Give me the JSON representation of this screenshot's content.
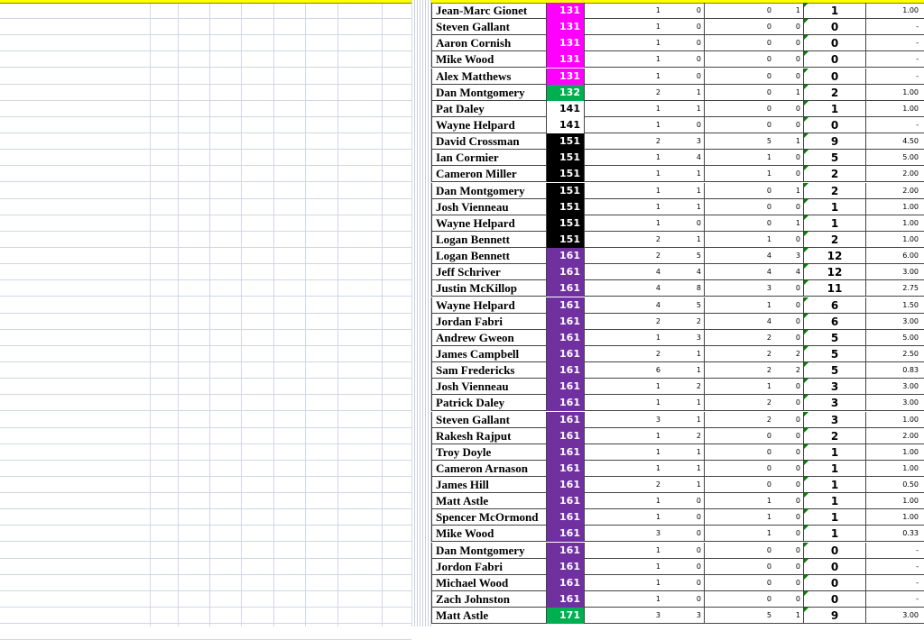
{
  "colors": {
    "header": "#ffff00",
    "c131": "#ff00ff",
    "c132": "#00b050",
    "c141": "#ffffff",
    "c151": "#000000",
    "c161": "#7030a0",
    "c171": "#00b050"
  },
  "rows": [
    {
      "name": "Jean-Marc Gionet",
      "code": "131",
      "a": "1",
      "b": "0",
      "c": "0",
      "d": "1",
      "total": "1",
      "ratio": "1.00"
    },
    {
      "name": "Steven Gallant",
      "code": "131",
      "a": "1",
      "b": "0",
      "c": "0",
      "d": "0",
      "total": "0",
      "ratio": "-"
    },
    {
      "name": "Aaron Cornish",
      "code": "131",
      "a": "1",
      "b": "0",
      "c": "0",
      "d": "0",
      "total": "0",
      "ratio": "-"
    },
    {
      "name": "Mike Wood",
      "code": "131",
      "a": "1",
      "b": "0",
      "c": "0",
      "d": "0",
      "total": "0",
      "ratio": "-"
    },
    {
      "name": "Alex Matthews",
      "code": "131",
      "a": "1",
      "b": "0",
      "c": "0",
      "d": "0",
      "total": "0",
      "ratio": "-"
    },
    {
      "name": "Dan Montgomery",
      "code": "132",
      "a": "2",
      "b": "1",
      "c": "0",
      "d": "1",
      "total": "2",
      "ratio": "1.00"
    },
    {
      "name": "Pat Daley",
      "code": "141",
      "a": "1",
      "b": "1",
      "c": "0",
      "d": "0",
      "total": "1",
      "ratio": "1.00"
    },
    {
      "name": "Wayne Helpard",
      "code": "141",
      "a": "1",
      "b": "0",
      "c": "0",
      "d": "0",
      "total": "0",
      "ratio": "-"
    },
    {
      "name": "David Crossman",
      "code": "151",
      "a": "2",
      "b": "3",
      "c": "5",
      "d": "1",
      "total": "9",
      "ratio": "4.50"
    },
    {
      "name": "Ian Cormier",
      "code": "151",
      "a": "1",
      "b": "4",
      "c": "1",
      "d": "0",
      "total": "5",
      "ratio": "5.00"
    },
    {
      "name": "Cameron Miller",
      "code": "151",
      "a": "1",
      "b": "1",
      "c": "1",
      "d": "0",
      "total": "2",
      "ratio": "2.00"
    },
    {
      "name": "Dan Montgomery",
      "code": "151",
      "a": "1",
      "b": "1",
      "c": "0",
      "d": "1",
      "total": "2",
      "ratio": "2.00"
    },
    {
      "name": "Josh Vienneau",
      "code": "151",
      "a": "1",
      "b": "1",
      "c": "0",
      "d": "0",
      "total": "1",
      "ratio": "1.00"
    },
    {
      "name": "Wayne Helpard",
      "code": "151",
      "a": "1",
      "b": "0",
      "c": "0",
      "d": "1",
      "total": "1",
      "ratio": "1.00"
    },
    {
      "name": "Logan Bennett",
      "code": "151",
      "a": "2",
      "b": "1",
      "c": "1",
      "d": "0",
      "total": "2",
      "ratio": "1.00"
    },
    {
      "name": "Logan Bennett",
      "code": "161",
      "a": "2",
      "b": "5",
      "c": "4",
      "d": "3",
      "total": "12",
      "ratio": "6.00"
    },
    {
      "name": "Jeff Schriver",
      "code": "161",
      "a": "4",
      "b": "4",
      "c": "4",
      "d": "4",
      "total": "12",
      "ratio": "3.00"
    },
    {
      "name": "Justin McKillop",
      "code": "161",
      "a": "4",
      "b": "8",
      "c": "3",
      "d": "0",
      "total": "11",
      "ratio": "2.75"
    },
    {
      "name": "Wayne Helpard",
      "code": "161",
      "a": "4",
      "b": "5",
      "c": "1",
      "d": "0",
      "total": "6",
      "ratio": "1.50"
    },
    {
      "name": "Jordan Fabri",
      "code": "161",
      "a": "2",
      "b": "2",
      "c": "4",
      "d": "0",
      "total": "6",
      "ratio": "3.00"
    },
    {
      "name": "Andrew Gweon",
      "code": "161",
      "a": "1",
      "b": "3",
      "c": "2",
      "d": "0",
      "total": "5",
      "ratio": "5.00"
    },
    {
      "name": "James Campbell",
      "code": "161",
      "a": "2",
      "b": "1",
      "c": "2",
      "d": "2",
      "total": "5",
      "ratio": "2.50"
    },
    {
      "name": "Sam Fredericks",
      "code": "161",
      "a": "6",
      "b": "1",
      "c": "2",
      "d": "2",
      "total": "5",
      "ratio": "0.83"
    },
    {
      "name": "Josh Vienneau",
      "code": "161",
      "a": "1",
      "b": "2",
      "c": "1",
      "d": "0",
      "total": "3",
      "ratio": "3.00"
    },
    {
      "name": "Patrick Daley",
      "code": "161",
      "a": "1",
      "b": "1",
      "c": "2",
      "d": "0",
      "total": "3",
      "ratio": "3.00"
    },
    {
      "name": "Steven Gallant",
      "code": "161",
      "a": "3",
      "b": "1",
      "c": "2",
      "d": "0",
      "total": "3",
      "ratio": "1.00"
    },
    {
      "name": "Rakesh Rajput",
      "code": "161",
      "a": "1",
      "b": "2",
      "c": "0",
      "d": "0",
      "total": "2",
      "ratio": "2.00"
    },
    {
      "name": "Troy Doyle",
      "code": "161",
      "a": "1",
      "b": "1",
      "c": "0",
      "d": "0",
      "total": "1",
      "ratio": "1.00"
    },
    {
      "name": "Cameron Arnason",
      "code": "161",
      "a": "1",
      "b": "1",
      "c": "0",
      "d": "0",
      "total": "1",
      "ratio": "1.00"
    },
    {
      "name": "James Hill",
      "code": "161",
      "a": "2",
      "b": "1",
      "c": "0",
      "d": "0",
      "total": "1",
      "ratio": "0.50"
    },
    {
      "name": "Matt Astle",
      "code": "161",
      "a": "1",
      "b": "0",
      "c": "1",
      "d": "0",
      "total": "1",
      "ratio": "1.00"
    },
    {
      "name": "Spencer McOrmond",
      "code": "161",
      "a": "1",
      "b": "0",
      "c": "1",
      "d": "0",
      "total": "1",
      "ratio": "1.00"
    },
    {
      "name": "Mike Wood",
      "code": "161",
      "a": "3",
      "b": "0",
      "c": "1",
      "d": "0",
      "total": "1",
      "ratio": "0.33"
    },
    {
      "name": "Dan Montgomery",
      "code": "161",
      "a": "1",
      "b": "0",
      "c": "0",
      "d": "0",
      "total": "0",
      "ratio": "-"
    },
    {
      "name": "Jordon Fabri",
      "code": "161",
      "a": "1",
      "b": "0",
      "c": "0",
      "d": "0",
      "total": "0",
      "ratio": "-"
    },
    {
      "name": "Michael Wood",
      "code": "161",
      "a": "1",
      "b": "0",
      "c": "0",
      "d": "0",
      "total": "0",
      "ratio": "-"
    },
    {
      "name": "Zach Johnston",
      "code": "161",
      "a": "1",
      "b": "0",
      "c": "0",
      "d": "0",
      "total": "0",
      "ratio": "-"
    },
    {
      "name": "Matt Astle",
      "code": "171",
      "a": "3",
      "b": "3",
      "c": "5",
      "d": "1",
      "total": "9",
      "ratio": "3.00"
    }
  ]
}
